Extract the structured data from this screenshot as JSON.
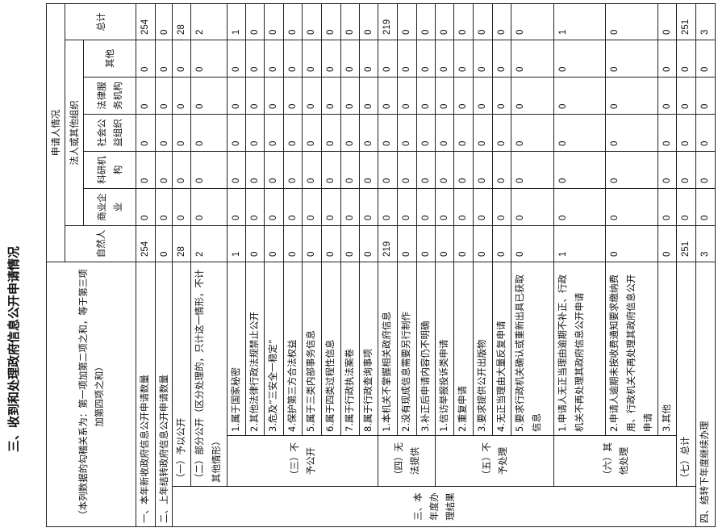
{
  "title": "三、收到和处理政府信息公开申请情况",
  "header": {
    "note": "（本列数据的勾稽关系为：第一项加第二项之和，等于第三项加第四项之和）",
    "applicant": "申请人情况",
    "natural_person": "自然人",
    "legal_group": "法人或其他组织",
    "business": "商业企业",
    "research": "科研机构",
    "public_welfare": "社会公益组织",
    "legal_service": "法律服务机构",
    "other": "其他",
    "total": "总计"
  },
  "labels": {
    "r1": "一、本年新收政府信息公开申请数量",
    "r2": "二、上年结转政府信息公开申请数量",
    "s3": "三、本年度办理结果",
    "g1": "（一）予以公开",
    "g2": "（二）部分公开（区分处理的，只计这一情形，不计其他情形）",
    "g3": "（三）不予公开",
    "g3_items": [
      "1.属于国家秘密",
      "2.其他法律行政法规禁止公开",
      "3.危及“三安全一稳定”",
      "4.保护第三方合法权益",
      "5.属于三类内部事务信息",
      "6.属于四类过程性信息",
      "7.属于行政执法案卷",
      "8.属于行政查询事项"
    ],
    "g4": "（四）无法提供",
    "g4_items": [
      "1.本机关不掌握相关政府信息",
      "2.没有现成信息需要另行制作",
      "3.补正后申请内容仍不明确"
    ],
    "g5": "（五）不予处理",
    "g5_items": [
      "1.信访举报投诉类申请",
      "2.重复申请",
      "3.要求提供公开出版物",
      "4.无正当理由大量反复申请",
      "5.要求行政机关确认或重新出具已获取信息"
    ],
    "g6": "（六）其他处理",
    "g6_items": [
      "1.申请人无正当理由逾期不补正、行政机关不再处理其政府信息公开申请",
      "2.申请人逾期未按收费通知要求缴纳费用、行政机关不再处理其政府信息公开申请",
      "3.其他"
    ],
    "g7": "（七）总计",
    "r4": "四、结转下年度继续办理"
  },
  "rows": [
    [
      "254",
      "0",
      "0",
      "0",
      "0",
      "0",
      "254"
    ],
    [
      "0",
      "0",
      "0",
      "0",
      "0",
      "0",
      "0"
    ],
    [
      "28",
      "0",
      "0",
      "0",
      "0",
      "0",
      "28"
    ],
    [
      "2",
      "0",
      "0",
      "0",
      "0",
      "0",
      "2"
    ],
    [
      "1",
      "0",
      "0",
      "0",
      "0",
      "0",
      "1"
    ],
    [
      "0",
      "0",
      "0",
      "0",
      "0",
      "0",
      "0"
    ],
    [
      "0",
      "0",
      "0",
      "0",
      "0",
      "0",
      "0"
    ],
    [
      "0",
      "0",
      "0",
      "0",
      "0",
      "0",
      "0"
    ],
    [
      "0",
      "0",
      "0",
      "0",
      "0",
      "0",
      "0"
    ],
    [
      "0",
      "0",
      "0",
      "0",
      "0",
      "0",
      "0"
    ],
    [
      "0",
      "0",
      "0",
      "0",
      "0",
      "0",
      "0"
    ],
    [
      "0",
      "0",
      "0",
      "0",
      "0",
      "0",
      "0"
    ],
    [
      "219",
      "0",
      "0",
      "0",
      "0",
      "0",
      "219"
    ],
    [
      "0",
      "0",
      "0",
      "0",
      "0",
      "0",
      "0"
    ],
    [
      "0",
      "0",
      "0",
      "0",
      "0",
      "0",
      "0"
    ],
    [
      "0",
      "0",
      "0",
      "0",
      "0",
      "0",
      "0"
    ],
    [
      "0",
      "0",
      "0",
      "0",
      "0",
      "0",
      "0"
    ],
    [
      "0",
      "0",
      "0",
      "0",
      "0",
      "0",
      "0"
    ],
    [
      "0",
      "0",
      "0",
      "0",
      "0",
      "0",
      "0"
    ],
    [
      "0",
      "0",
      "0",
      "0",
      "0",
      "0",
      "0"
    ],
    [
      "1",
      "0",
      "0",
      "0",
      "0",
      "0",
      "1"
    ],
    [
      "0",
      "0",
      "0",
      "0",
      "0",
      "0",
      "0"
    ],
    [
      "0",
      "0",
      "0",
      "0",
      "0",
      "0",
      "0"
    ],
    [
      "251",
      "0",
      "0",
      "0",
      "0",
      "0",
      "251"
    ],
    [
      "3",
      "0",
      "0",
      "0",
      "0",
      "0",
      "3"
    ]
  ]
}
